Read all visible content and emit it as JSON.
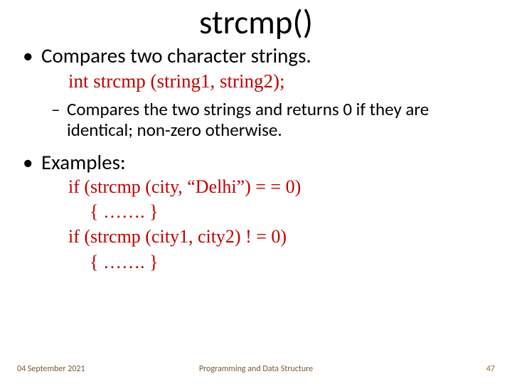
{
  "title": "strcmp()",
  "bullets": {
    "compares": "Compares two character strings.",
    "signature": "int  strcmp (string1, string2);",
    "sub_compare": "Compares the two strings and returns 0 if they are identical; non-zero otherwise.",
    "examples_label": "Examples:",
    "ex1_if": "if   (strcmp (city, “Delhi”) = = 0)",
    "ex1_body": "{  …….  }",
    "ex2_if": "if  (strcmp (city1, city2) ! = 0)",
    "ex2_body": "{ ……. }"
  },
  "footer": {
    "date": "04 September 2021",
    "course": "Programming and Data Structure",
    "page": "47"
  },
  "colors": {
    "code": "#c00000",
    "text": "#000000",
    "footer": "#7a5a3a",
    "background": "#ffffff"
  }
}
